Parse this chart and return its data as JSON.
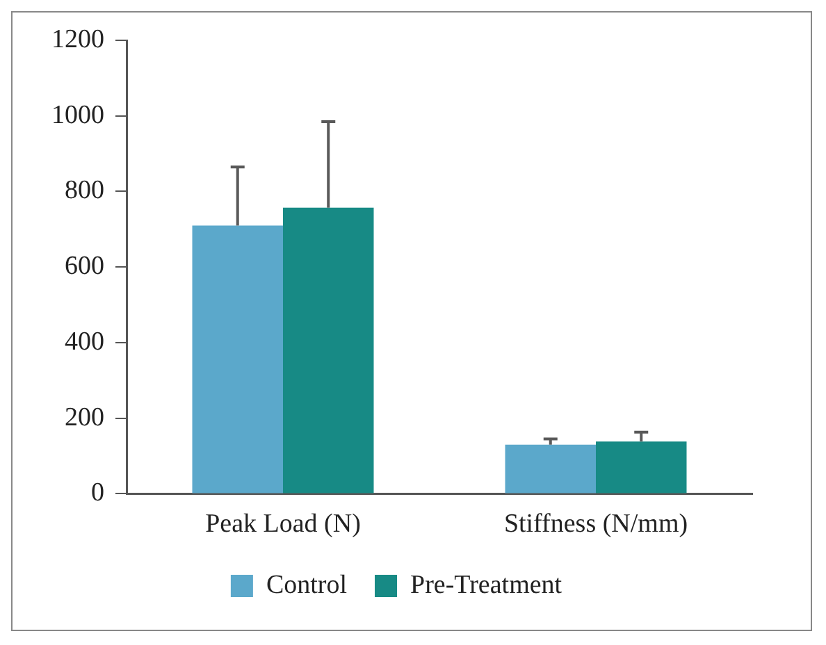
{
  "chart_data": {
    "type": "bar",
    "categories": [
      "Peak Load (N)",
      "Stiffness (N/mm)"
    ],
    "series": [
      {
        "name": "Control",
        "color": "#5ba8cb",
        "values": [
          710,
          130
        ],
        "errors": [
          [
            710,
            865
          ],
          [
            130,
            145
          ]
        ]
      },
      {
        "name": "Pre-Treatment",
        "color": "#178a85",
        "values": [
          757,
          138
        ],
        "errors": [
          [
            757,
            985
          ],
          [
            138,
            163
          ]
        ]
      }
    ],
    "ylim": [
      0,
      1200
    ],
    "yticks": [
      0,
      200,
      400,
      600,
      800,
      1000,
      1200
    ],
    "grid": false,
    "legend": "bottom"
  }
}
